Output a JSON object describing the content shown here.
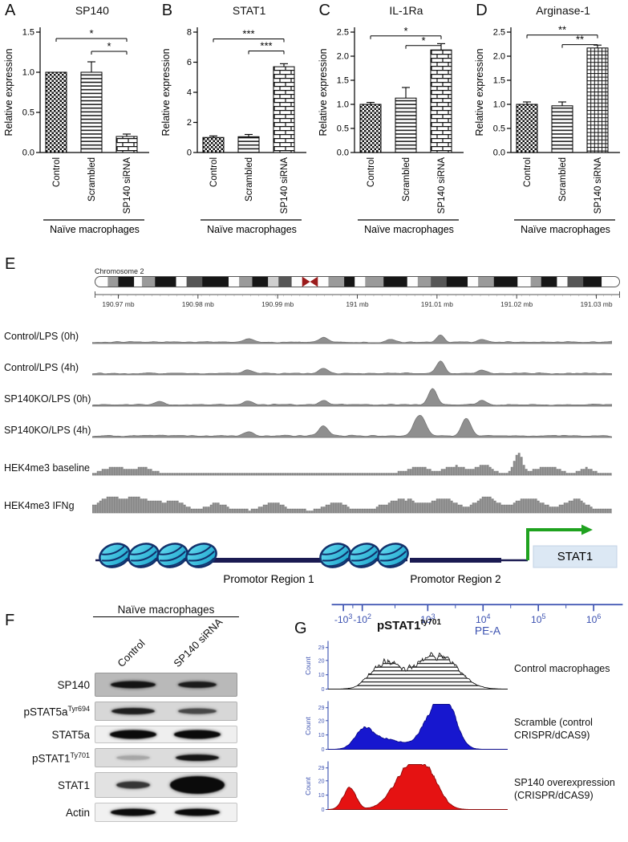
{
  "chart_data": [
    {
      "panel": "A",
      "type": "bar",
      "title": "SP140",
      "ylabel": "Relative expression",
      "categories": [
        "Control",
        "Scrambled",
        "SP140 siRNA"
      ],
      "values": [
        1.0,
        1.0,
        0.2
      ],
      "errors": [
        0,
        0.13,
        0.03
      ],
      "ylim": [
        0,
        1.5
      ],
      "yticks": [
        "0.0",
        "0.5",
        "1.0",
        "1.5"
      ],
      "patterns": [
        "checker",
        "hlines",
        "brick"
      ],
      "significance": [
        {
          "from": 0,
          "to": 2,
          "y": 1.42,
          "label": "*"
        },
        {
          "from": 1,
          "to": 2,
          "y": 1.26,
          "label": "*"
        }
      ],
      "group_label": "Naïve macrophages"
    },
    {
      "panel": "B",
      "type": "bar",
      "title": "STAT1",
      "ylabel": "Relative expression",
      "categories": [
        "Control",
        "Scrambled",
        "SP140 siRNA"
      ],
      "values": [
        1.0,
        1.05,
        5.7
      ],
      "errors": [
        0.1,
        0.15,
        0.2
      ],
      "ylim": [
        0,
        8
      ],
      "yticks": [
        "0",
        "2",
        "4",
        "6",
        "8"
      ],
      "patterns": [
        "checker",
        "hlines",
        "brick"
      ],
      "significance": [
        {
          "from": 0,
          "to": 2,
          "y": 7.55,
          "label": "***"
        },
        {
          "from": 1,
          "to": 2,
          "y": 6.75,
          "label": "***"
        }
      ],
      "group_label": "Naïve macrophages"
    },
    {
      "panel": "C",
      "type": "bar",
      "title": "IL-1Ra",
      "ylabel": "Relative expression",
      "categories": [
        "Control",
        "Scrambled",
        "SP140 siRNA"
      ],
      "values": [
        1.0,
        1.13,
        2.13
      ],
      "errors": [
        0.04,
        0.22,
        0.13
      ],
      "ylim": [
        0,
        2.5
      ],
      "yticks": [
        "0.0",
        "0.5",
        "1.0",
        "1.5",
        "2.0",
        "2.5"
      ],
      "patterns": [
        "checker",
        "hlines",
        "brick"
      ],
      "significance": [
        {
          "from": 0,
          "to": 2,
          "y": 2.42,
          "label": "*"
        },
        {
          "from": 1,
          "to": 2,
          "y": 2.22,
          "label": "*"
        }
      ],
      "group_label": "Naïve macrophages"
    },
    {
      "panel": "D",
      "type": "bar",
      "title": "Arginase-1",
      "ylabel": "Relative expression",
      "categories": [
        "Control",
        "Scrambled",
        "SP140 siRNA"
      ],
      "values": [
        1.0,
        0.97,
        2.17
      ],
      "errors": [
        0.05,
        0.08,
        0.06
      ],
      "ylim": [
        0,
        2.5
      ],
      "yticks": [
        "0.0",
        "0.5",
        "1.0",
        "1.5",
        "2.0",
        "2.5"
      ],
      "patterns": [
        "checker",
        "hlines",
        "grid"
      ],
      "significance": [
        {
          "from": 0,
          "to": 2,
          "y": 2.44,
          "label": "**"
        },
        {
          "from": 1,
          "to": 2,
          "y": 2.24,
          "label": "**"
        }
      ],
      "group_label": "Naïve macrophages"
    },
    {
      "panel": "E",
      "type": "genome-tracks",
      "chromosome_label": "Chromosome 2",
      "ruler_ticks": [
        "190.97 mb",
        "190.98 mb",
        "190.99 mb",
        "191 mb",
        "191.01 mb",
        "191.02 mb",
        "191.03 mb"
      ],
      "ideogram": {
        "centromere_color": "#9b1c1c",
        "bands": [
          {
            "w": 0.025,
            "c": "w"
          },
          {
            "w": 0.02,
            "c": "g"
          },
          {
            "w": 0.03,
            "c": "b"
          },
          {
            "w": 0.015,
            "c": "w"
          },
          {
            "w": 0.025,
            "c": "g"
          },
          {
            "w": 0.04,
            "c": "b"
          },
          {
            "w": 0.02,
            "c": "w"
          },
          {
            "w": 0.03,
            "c": "dg"
          },
          {
            "w": 0.05,
            "c": "b"
          },
          {
            "w": 0.02,
            "c": "w"
          },
          {
            "w": 0.025,
            "c": "g"
          },
          {
            "w": 0.03,
            "c": "b"
          },
          {
            "w": 0.02,
            "c": "lg"
          },
          {
            "w": 0.025,
            "c": "dg"
          },
          {
            "w": 0.02,
            "c": "w"
          },
          {
            "w": 0.03,
            "c": "r"
          },
          {
            "w": 0.02,
            "c": "w"
          },
          {
            "w": 0.03,
            "c": "g"
          },
          {
            "w": 0.02,
            "c": "b"
          },
          {
            "w": 0.02,
            "c": "w"
          },
          {
            "w": 0.035,
            "c": "g"
          },
          {
            "w": 0.045,
            "c": "b"
          },
          {
            "w": 0.02,
            "c": "w"
          },
          {
            "w": 0.025,
            "c": "g"
          },
          {
            "w": 0.03,
            "c": "dg"
          },
          {
            "w": 0.04,
            "c": "b"
          },
          {
            "w": 0.02,
            "c": "w"
          },
          {
            "w": 0.03,
            "c": "g"
          },
          {
            "w": 0.045,
            "c": "b"
          },
          {
            "w": 0.025,
            "c": "w"
          },
          {
            "w": 0.02,
            "c": "g"
          },
          {
            "w": 0.03,
            "c": "b"
          },
          {
            "w": 0.02,
            "c": "w"
          },
          {
            "w": 0.03,
            "c": "dg"
          },
          {
            "w": 0.035,
            "c": "b"
          },
          {
            "w": 0.02,
            "c": "w"
          }
        ]
      },
      "tracks": [
        {
          "label": "Control/LPS (0h)",
          "style": "smooth",
          "floor": 0.07,
          "peaks": [
            {
              "p": 0.3,
              "h": 0.16,
              "w": 0.01
            },
            {
              "p": 0.445,
              "h": 0.22,
              "w": 0.008
            },
            {
              "p": 0.575,
              "h": 0.12,
              "w": 0.008
            },
            {
              "p": 0.67,
              "h": 0.34,
              "w": 0.007
            },
            {
              "p": 0.75,
              "h": 0.14,
              "w": 0.008
            }
          ]
        },
        {
          "label": "Control/LPS (4h)",
          "style": "smooth",
          "floor": 0.07,
          "peaks": [
            {
              "p": 0.3,
              "h": 0.15,
              "w": 0.01
            },
            {
              "p": 0.445,
              "h": 0.24,
              "w": 0.008
            },
            {
              "p": 0.67,
              "h": 0.55,
              "w": 0.008
            },
            {
              "p": 0.75,
              "h": 0.17,
              "w": 0.008
            }
          ]
        },
        {
          "label": "SP140KO/LPS (0h)",
          "style": "smooth",
          "floor": 0.07,
          "peaks": [
            {
              "p": 0.13,
              "h": 0.14,
              "w": 0.008
            },
            {
              "p": 0.3,
              "h": 0.17,
              "w": 0.009
            },
            {
              "p": 0.445,
              "h": 0.2,
              "w": 0.008
            },
            {
              "p": 0.655,
              "h": 0.75,
              "w": 0.008
            },
            {
              "p": 0.75,
              "h": 0.18,
              "w": 0.008
            }
          ]
        },
        {
          "label": "SP140KO/LPS (4h)",
          "style": "smooth",
          "floor": 0.08,
          "peaks": [
            {
              "p": 0.3,
              "h": 0.2,
              "w": 0.009
            },
            {
              "p": 0.445,
              "h": 0.45,
              "w": 0.009
            },
            {
              "p": 0.63,
              "h": 0.95,
              "w": 0.011
            },
            {
              "p": 0.72,
              "h": 0.82,
              "w": 0.009
            }
          ]
        },
        {
          "label": "HEK4me3 baseline",
          "style": "blocks",
          "floor": 0.09,
          "peaks": [
            {
              "p": 0.045,
              "h": 0.3,
              "w": 0.02
            },
            {
              "p": 0.1,
              "h": 0.27,
              "w": 0.015
            },
            {
              "p": 0.63,
              "h": 0.3,
              "w": 0.02
            },
            {
              "p": 0.7,
              "h": 0.33,
              "w": 0.02
            },
            {
              "p": 0.755,
              "h": 0.35,
              "w": 0.015
            },
            {
              "p": 0.82,
              "h": 0.9,
              "w": 0.008
            },
            {
              "p": 0.875,
              "h": 0.3,
              "w": 0.02
            },
            {
              "p": 0.95,
              "h": 0.24,
              "w": 0.012
            }
          ]
        },
        {
          "label": "HEK4me3 IFNg",
          "style": "blocks",
          "floor": 0.14,
          "peaks": [
            {
              "p": 0.03,
              "h": 0.5,
              "w": 0.02
            },
            {
              "p": 0.09,
              "h": 0.55,
              "w": 0.03
            },
            {
              "p": 0.16,
              "h": 0.4,
              "w": 0.02
            },
            {
              "p": 0.24,
              "h": 0.33,
              "w": 0.015
            },
            {
              "p": 0.35,
              "h": 0.3,
              "w": 0.02
            },
            {
              "p": 0.47,
              "h": 0.34,
              "w": 0.02
            },
            {
              "p": 0.6,
              "h": 0.5,
              "w": 0.03
            },
            {
              "p": 0.68,
              "h": 0.55,
              "w": 0.02
            },
            {
              "p": 0.76,
              "h": 0.6,
              "w": 0.02
            },
            {
              "p": 0.84,
              "h": 0.55,
              "w": 0.025
            },
            {
              "p": 0.93,
              "h": 0.5,
              "w": 0.02
            }
          ]
        }
      ],
      "diagram": {
        "promoter1": "Promotor Region 1",
        "promoter2": "Promotor Region 2",
        "gene": "STAT1",
        "nucleosome_color": "#2fc0e4",
        "dna_color": "#1b1b52",
        "arrow_color": "#1fa21f"
      }
    },
    {
      "panel": "G",
      "type": "histogram-overlay",
      "title_base": "pSTAT1",
      "title_sup": "ty701",
      "ylabel": "Count",
      "xlabel": "PE-A",
      "xticks": [
        {
          "label": "-10^3",
          "f": 0.04
        },
        {
          "label": "-10^2",
          "f": 0.105
        },
        {
          "label": "10^3",
          "f": 0.33
        },
        {
          "label": "10^4",
          "f": 0.52
        },
        {
          "label": "10^5",
          "f": 0.71
        },
        {
          "label": "10^6",
          "f": 0.9
        }
      ],
      "histograms": [
        {
          "label_lines": [
            "Control macrophages"
          ],
          "style": "outline",
          "color": "#ffffff",
          "edge": "#151515",
          "yticks": [
            0,
            10,
            20,
            29
          ],
          "seed": 3,
          "jag": 0.38,
          "peaks": [
            {
              "p": 0.3,
              "h": 0.5,
              "w": 0.07
            },
            {
              "p": 0.45,
              "h": 0.3,
              "w": 0.1
            },
            {
              "p": 0.63,
              "h": 0.68,
              "w": 0.1
            }
          ]
        },
        {
          "label_lines": [
            "Scramble (control",
            "CRISPR/dCAS9)"
          ],
          "style": "fill",
          "color": "#1717cf",
          "edge": "#0b0b8a",
          "yticks": [
            0,
            10,
            20,
            29
          ],
          "seed": 5,
          "jag": 0.22,
          "peaks": [
            {
              "p": 0.2,
              "h": 0.42,
              "w": 0.05
            },
            {
              "p": 0.33,
              "h": 0.22,
              "w": 0.08
            },
            {
              "p": 0.6,
              "h": 0.92,
              "w": 0.07
            },
            {
              "p": 0.68,
              "h": 0.5,
              "w": 0.05
            }
          ]
        },
        {
          "label_lines": [
            "SP140 overexpression",
            "(CRISPR/dCAS9)"
          ],
          "style": "fill",
          "color": "#e51212",
          "edge": "#8d0606",
          "yticks": [
            0,
            10,
            20,
            29
          ],
          "seed": 9,
          "jag": 0.22,
          "peaks": [
            {
              "p": 0.12,
              "h": 0.5,
              "w": 0.035
            },
            {
              "p": 0.46,
              "h": 0.93,
              "w": 0.09
            },
            {
              "p": 0.57,
              "h": 0.42,
              "w": 0.06
            }
          ]
        }
      ]
    }
  ],
  "western_blot": {
    "panel": "F",
    "header": "Naïve macrophages",
    "lanes": [
      "Control",
      "SP140 siRNA"
    ],
    "rows": [
      {
        "label": "SP140",
        "sup": "",
        "strip_bg": "#b9b9b9",
        "height": 30,
        "bands": [
          {
            "o": 0.95,
            "w": 56,
            "h": 9
          },
          {
            "o": 0.9,
            "w": 48,
            "h": 8
          }
        ]
      },
      {
        "label": "pSTAT5a",
        "sup": "Tyr694",
        "strip_bg": "#d7d7d7",
        "height": 24,
        "bands": [
          {
            "o": 0.9,
            "w": 54,
            "h": 8
          },
          {
            "o": 0.7,
            "w": 48,
            "h": 7
          }
        ]
      },
      {
        "label": "STAT5a",
        "sup": "",
        "strip_bg": "#efefef",
        "height": 22,
        "bands": [
          {
            "o": 1,
            "w": 58,
            "h": 11
          },
          {
            "o": 1,
            "w": 58,
            "h": 11
          }
        ]
      },
      {
        "label": "pSTAT1",
        "sup": "Ty701",
        "strip_bg": "#dcdcdc",
        "height": 24,
        "bands": [
          {
            "o": 0.25,
            "w": 42,
            "h": 6
          },
          {
            "o": 0.95,
            "w": 54,
            "h": 8
          }
        ]
      },
      {
        "label": "STAT1",
        "sup": "",
        "strip_bg": "#e2e2e2",
        "height": 32,
        "bands": [
          {
            "o": 0.8,
            "w": 42,
            "h": 9
          },
          {
            "o": 1,
            "w": 68,
            "h": 22
          }
        ]
      },
      {
        "label": "Actin",
        "sup": "",
        "strip_bg": "#f1f1f1",
        "height": 24,
        "bands": [
          {
            "o": 1,
            "w": 56,
            "h": 9
          },
          {
            "o": 1,
            "w": 56,
            "h": 9
          }
        ]
      }
    ]
  }
}
